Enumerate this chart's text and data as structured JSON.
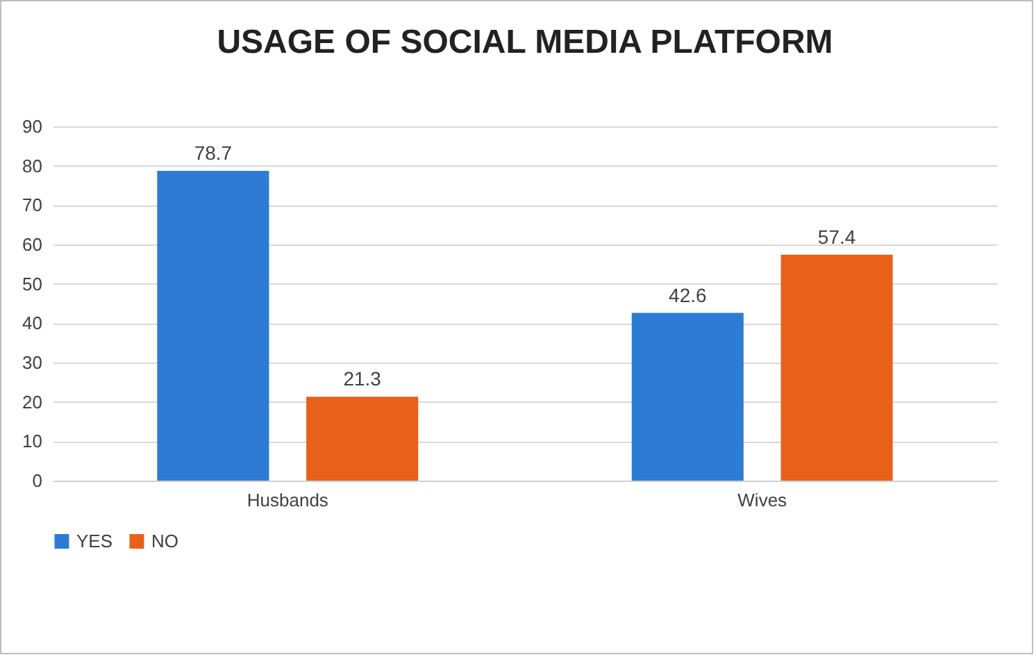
{
  "chart_data": {
    "type": "bar",
    "title": "USAGE OF SOCIAL MEDIA PLATFORM",
    "categories": [
      "Husbands",
      "Wives"
    ],
    "series": [
      {
        "name": "YES",
        "color": "#2e7bd6",
        "values": [
          78.7,
          42.6
        ]
      },
      {
        "name": "NO",
        "color": "#e8601a",
        "values": [
          21.3,
          57.4
        ]
      }
    ],
    "ylim": [
      0,
      90
    ],
    "yticks": [
      0,
      10,
      20,
      30,
      40,
      50,
      60,
      70,
      80,
      90
    ],
    "grid": "y",
    "legend": "bottom",
    "data_labels": true
  }
}
